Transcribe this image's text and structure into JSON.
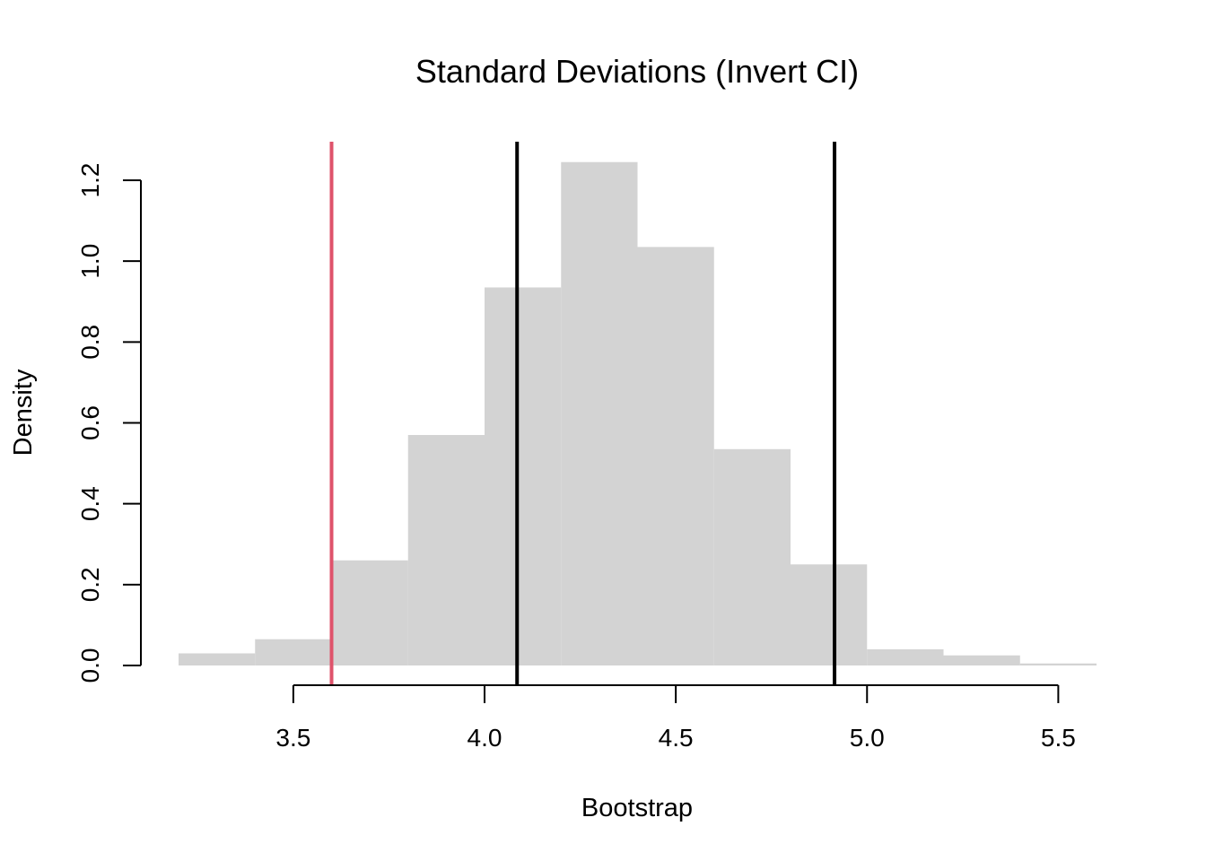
{
  "chart_data": {
    "type": "bar",
    "title": "Standard Deviations (Invert CI)",
    "xlabel": "Bootstrap",
    "ylabel": "Density",
    "xlim": [
      3.2,
      5.6
    ],
    "ylim": [
      0,
      1.2
    ],
    "x_ticks": [
      "3.5",
      "4.0",
      "4.5",
      "5.0",
      "5.5"
    ],
    "y_ticks": [
      "0.0",
      "0.2",
      "0.4",
      "0.6",
      "0.8",
      "1.0",
      "1.2"
    ],
    "bins": [
      {
        "x0": 3.2,
        "x1": 3.4,
        "density": 0.03
      },
      {
        "x0": 3.4,
        "x1": 3.6,
        "density": 0.065
      },
      {
        "x0": 3.6,
        "x1": 3.8,
        "density": 0.26
      },
      {
        "x0": 3.8,
        "x1": 4.0,
        "density": 0.57
      },
      {
        "x0": 4.0,
        "x1": 4.2,
        "density": 0.935
      },
      {
        "x0": 4.2,
        "x1": 4.4,
        "density": 1.245
      },
      {
        "x0": 4.4,
        "x1": 4.6,
        "density": 1.035
      },
      {
        "x0": 4.6,
        "x1": 4.8,
        "density": 0.535
      },
      {
        "x0": 4.8,
        "x1": 5.0,
        "density": 0.25
      },
      {
        "x0": 5.0,
        "x1": 5.2,
        "density": 0.04
      },
      {
        "x0": 5.2,
        "x1": 5.4,
        "density": 0.025
      },
      {
        "x0": 5.4,
        "x1": 5.6,
        "density": 0.005
      }
    ],
    "vlines": [
      {
        "x": 3.6,
        "color": "#df536b"
      },
      {
        "x": 4.085,
        "color": "#000000"
      },
      {
        "x": 4.915,
        "color": "#000000"
      }
    ],
    "bar_color": "#d3d3d3",
    "grid": false
  }
}
